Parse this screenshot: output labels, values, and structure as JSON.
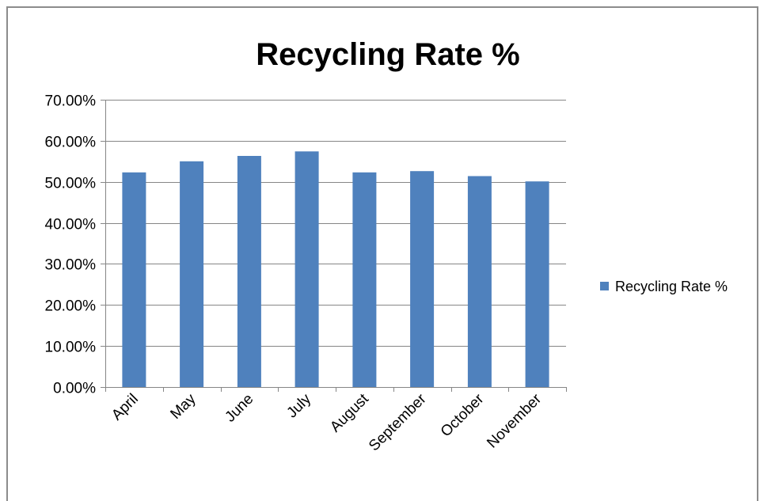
{
  "chart_data": {
    "type": "bar",
    "title": "Recycling Rate %",
    "xlabel": "",
    "ylabel": "",
    "categories": [
      "April",
      "May",
      "June",
      "July",
      "August",
      "September",
      "October",
      "November"
    ],
    "series": [
      {
        "name": "Recycling Rate %",
        "values": [
          0.523,
          0.55,
          0.563,
          0.574,
          0.523,
          0.526,
          0.514,
          0.501
        ],
        "color": "#4f81bd"
      }
    ],
    "y_ticks": [
      "0.00%",
      "10.00%",
      "20.00%",
      "30.00%",
      "40.00%",
      "50.00%",
      "60.00%",
      "70.00%"
    ],
    "ylim": [
      0,
      0.7
    ],
    "grid": true,
    "legend_position": "right",
    "gridline_color": "#868686"
  }
}
